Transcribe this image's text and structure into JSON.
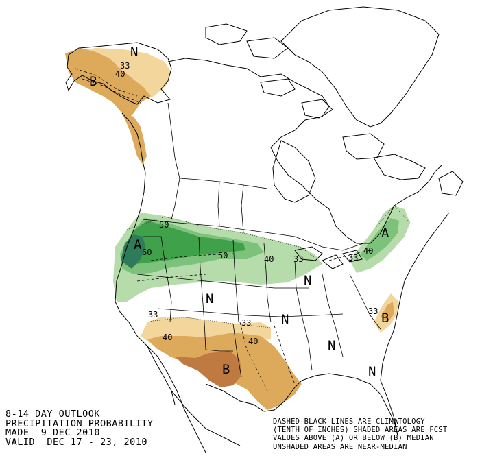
{
  "title_block": {
    "line1": "8-14 DAY OUTLOOK",
    "line2": "PRECIPITATION PROBABILITY",
    "line3": "MADE  9 DEC 2010",
    "line4": "VALID  DEC 17 - 23, 2010"
  },
  "legend_block": {
    "line1": "DASHED BLACK LINES ARE CLIMATOLOGY",
    "line2": "(TENTH OF INCHES) SHADED AREAS ARE FCST",
    "line3": "VALUES ABOVE (A) OR BELOW (B) MEDIAN",
    "line4": "UNSHADED AREAS ARE NEAR-MEDIAN"
  },
  "colors": {
    "above_33": "#b5dcaa",
    "above_40": "#7dc27a",
    "above_50": "#3fa14a",
    "above_60": "#2e7a5a",
    "below_33": "#f3d69b",
    "below_40": "#ddaa5c",
    "below_50": "#be7a40"
  },
  "map_labels": {
    "alaska_n": "N",
    "alaska_33": "33",
    "alaska_40": "40",
    "alaska_b": "B",
    "nw_50": "50",
    "nw_a": "A",
    "nw_60": "60",
    "north_50": "50",
    "north_40": "40",
    "north_33": "33",
    "ne_a": "A",
    "ne_40": "40",
    "ne_33": "33",
    "central_n1": "N",
    "central_n2": "N",
    "central_n3": "N",
    "se_n1": "N",
    "se_n2": "N",
    "sw_33": "33",
    "sw_40": "40",
    "tx_33": "33",
    "tx_40": "40",
    "tx_b": "B",
    "atl_33": "33",
    "atl_b": "B"
  }
}
